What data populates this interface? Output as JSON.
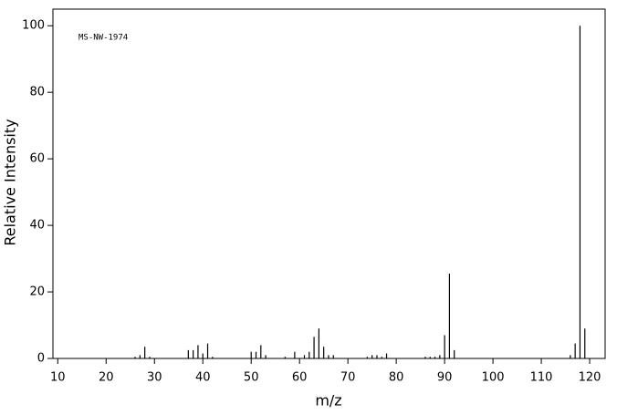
{
  "chart_data": {
    "type": "stem",
    "annotation": "MS-NW-1974",
    "xlabel": "m/z",
    "ylabel": "Relative Intensity",
    "x": [
      26,
      27,
      28,
      29,
      37,
      38,
      39,
      40,
      41,
      42,
      50,
      51,
      52,
      53,
      57,
      59,
      61,
      62,
      63,
      64,
      65,
      66,
      67,
      74,
      75,
      76,
      77,
      78,
      86,
      87,
      88,
      89,
      90,
      91,
      92,
      116,
      117,
      118,
      119
    ],
    "values": [
      0.5,
      1,
      3.5,
      0.5,
      2.5,
      2.5,
      4,
      1.5,
      4.5,
      0.5,
      2,
      2,
      4,
      1,
      0.5,
      2,
      1,
      2,
      6.5,
      9,
      3.5,
      1,
      1,
      0.5,
      1,
      1,
      0.5,
      1.5,
      0.5,
      0.5,
      0.5,
      1,
      7,
      25.5,
      2.5,
      1,
      4.5,
      100,
      9
    ],
    "color": "#000000",
    "xlim": [
      9,
      123.2
    ],
    "ylim": [
      0,
      105
    ],
    "xticks": [
      10,
      20,
      30,
      40,
      50,
      60,
      70,
      80,
      90,
      100,
      110,
      120
    ],
    "yticks": [
      0,
      20,
      40,
      60,
      80,
      100
    ]
  }
}
